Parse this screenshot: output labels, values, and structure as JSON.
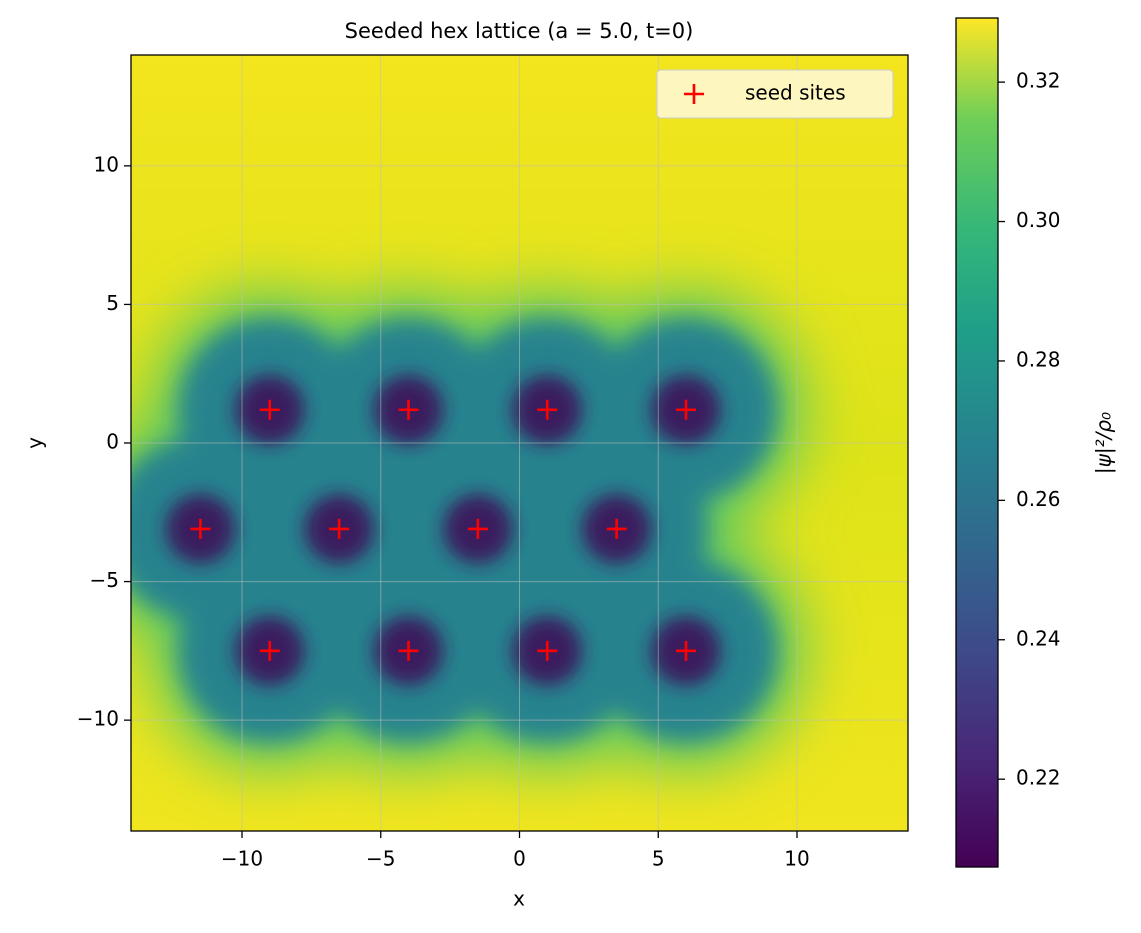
{
  "chart_data": {
    "type": "scatter",
    "title": "Seeded hex lattice (a = 5.0, t=0)",
    "x_label": "x",
    "y_label": "y",
    "xlim": [
      -14,
      14
    ],
    "ylim": [
      -14,
      14
    ],
    "xticks": [
      {
        "value": -10,
        "label": "−10"
      },
      {
        "value": -5,
        "label": "−5"
      },
      0,
      5,
      10
    ],
    "yticks": [
      {
        "value": -10,
        "label": "−10"
      },
      {
        "value": -5,
        "label": "−5"
      },
      0,
      5,
      10
    ],
    "grid": true,
    "legend": "upper right",
    "series": [
      {
        "name": "seed sites",
        "color": "#ff0000",
        "marker": "+",
        "x": [
          -9,
          -4,
          1,
          6,
          -11.5,
          -6.5,
          -1.5,
          3.5,
          -9,
          -4,
          1,
          6
        ],
        "y": [
          1.2,
          1.2,
          1.2,
          1.2,
          -3.1,
          -3.1,
          -3.1,
          -3.1,
          -7.5,
          -7.5,
          -7.5,
          -7.5
        ]
      }
    ],
    "colorbar": {
      "label": "|ψ|²/ρ₀",
      "colormap": "viridis",
      "lim": [
        0.2074,
        0.3292
      ],
      "ticks": [
        0.22,
        0.24,
        0.26,
        0.28,
        {
          "value": 0.3,
          "label": "0.30"
        },
        0.32
      ]
    }
  }
}
